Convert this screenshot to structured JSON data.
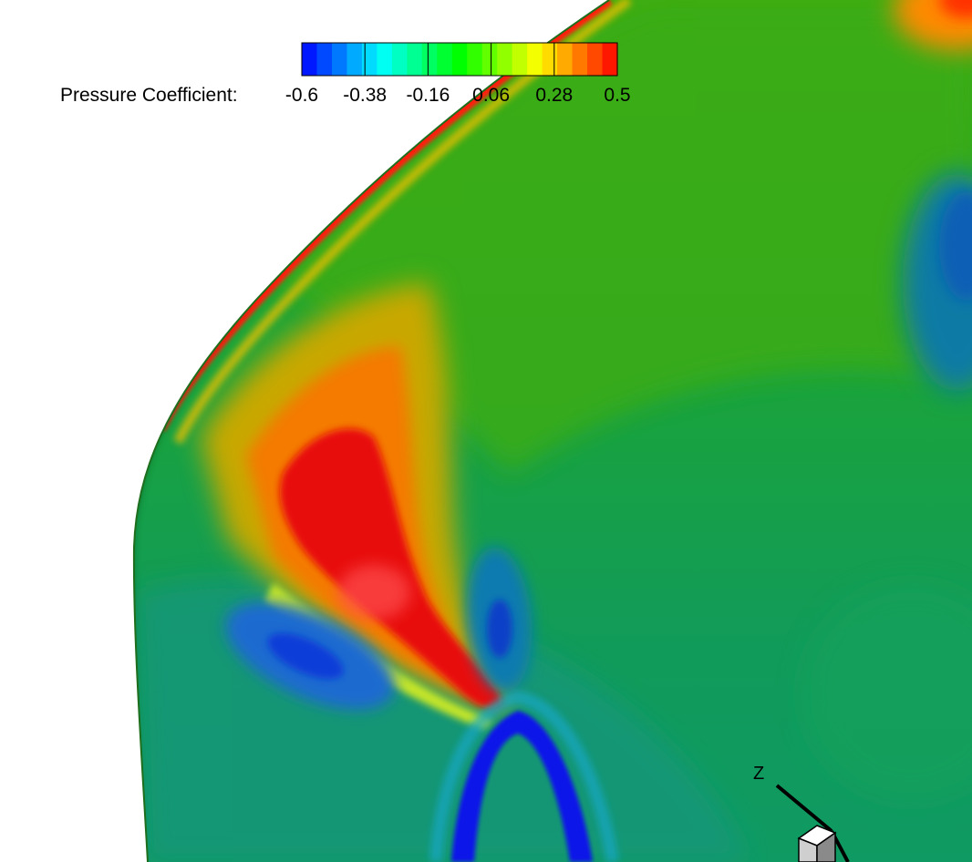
{
  "chart_data": {
    "type": "heatmap",
    "title": "",
    "colorbar": {
      "label": "Pressure Coefficient:",
      "min": -0.6,
      "max": 0.5,
      "ticks": [
        -0.6,
        -0.38,
        -0.16,
        0.06,
        0.28,
        0.5
      ],
      "tick_labels": [
        "-0.6",
        "-0.38",
        "-0.16",
        "0.06",
        "0.28",
        "0.5"
      ],
      "levels": 21,
      "colormap": [
        "#0000ff",
        "#00ffff",
        "#00ff00",
        "#ffff00",
        "#ff0000"
      ],
      "placement": "top-center"
    },
    "field_regions": [
      {
        "name": "leading-edge-stagnation",
        "value": 0.5
      },
      {
        "name": "upper-surface",
        "value": 0.0
      },
      {
        "name": "junction-high-pressure",
        "value": 0.5
      },
      {
        "name": "junction-suction",
        "value": -0.6
      },
      {
        "name": "lower-left-suction",
        "value": -0.45
      },
      {
        "name": "right-suction",
        "value": -0.35
      },
      {
        "name": "lower-surface",
        "value": -0.2
      }
    ],
    "axes_triad": {
      "labels": [
        "Z"
      ]
    }
  },
  "colors": {
    "background": "#ffffff",
    "surface_base": "#149e52"
  }
}
